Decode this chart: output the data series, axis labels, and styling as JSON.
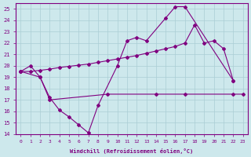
{
  "background_color": "#cde8ec",
  "line_color": "#800080",
  "grid_color": "#aacdd4",
  "xlabel": "Windchill (Refroidissement éolien,°C)",
  "xlim": [
    -0.5,
    23.5
  ],
  "ylim": [
    14,
    25.5
  ],
  "xticks": [
    0,
    1,
    2,
    3,
    4,
    5,
    6,
    7,
    8,
    9,
    10,
    11,
    12,
    13,
    14,
    15,
    16,
    17,
    18,
    19,
    20,
    21,
    22,
    23
  ],
  "yticks": [
    14,
    15,
    16,
    17,
    18,
    19,
    20,
    21,
    22,
    23,
    24,
    25
  ],
  "s1_x": [
    0,
    1,
    2,
    3,
    4,
    5,
    6,
    7,
    8,
    10,
    11,
    12,
    13,
    15,
    16,
    17,
    22
  ],
  "s1_y": [
    19.5,
    20.0,
    19.0,
    17.2,
    16.1,
    15.5,
    14.8,
    14.1,
    16.5,
    20.0,
    22.2,
    22.5,
    22.2,
    24.2,
    25.2,
    25.2,
    18.7
  ],
  "s2_x": [
    0,
    2,
    3,
    9,
    14,
    17,
    22,
    23
  ],
  "s2_y": [
    19.5,
    19.0,
    17.0,
    17.5,
    17.5,
    17.5,
    17.5,
    17.5
  ],
  "s3_x": [
    0,
    1,
    2,
    3,
    4,
    5,
    6,
    7,
    8,
    9,
    10,
    11,
    12,
    13,
    14,
    15,
    16,
    17,
    18,
    19,
    20,
    21,
    22
  ],
  "s3_y": [
    19.5,
    19.5,
    19.6,
    19.7,
    19.85,
    19.95,
    20.05,
    20.15,
    20.3,
    20.45,
    20.6,
    20.75,
    20.9,
    21.1,
    21.3,
    21.5,
    21.7,
    22.0,
    23.6,
    22.0,
    22.2,
    21.5,
    18.7
  ]
}
